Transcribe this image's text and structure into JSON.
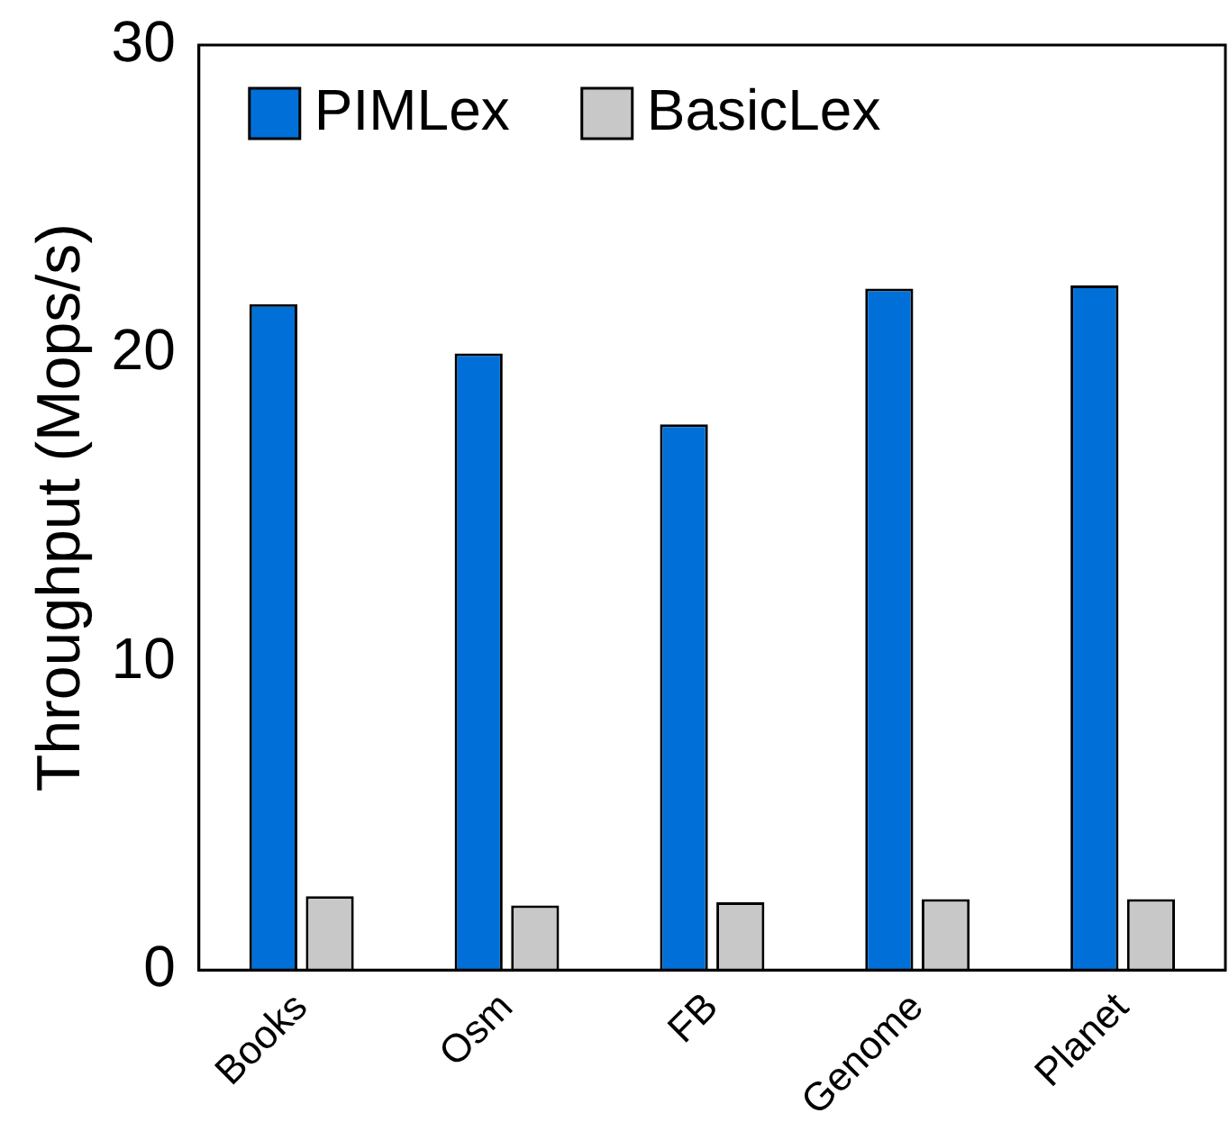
{
  "chart_data": {
    "type": "bar",
    "ylabel": "Throughput (Mops/s)",
    "categories": [
      "Books",
      "Osm",
      "FB",
      "Genome",
      "Planet"
    ],
    "series": [
      {
        "name": "PIMLex",
        "color": "#0070d8",
        "values": [
          21.6,
          20.0,
          17.7,
          22.1,
          22.2
        ]
      },
      {
        "name": "BasicLex",
        "color": "#c8c8c8",
        "values": [
          2.4,
          2.1,
          2.2,
          2.3,
          2.3
        ]
      }
    ],
    "ylim": [
      0,
      30
    ],
    "yticks": [
      0,
      10,
      20,
      30
    ],
    "grid": false,
    "legend": "top"
  }
}
